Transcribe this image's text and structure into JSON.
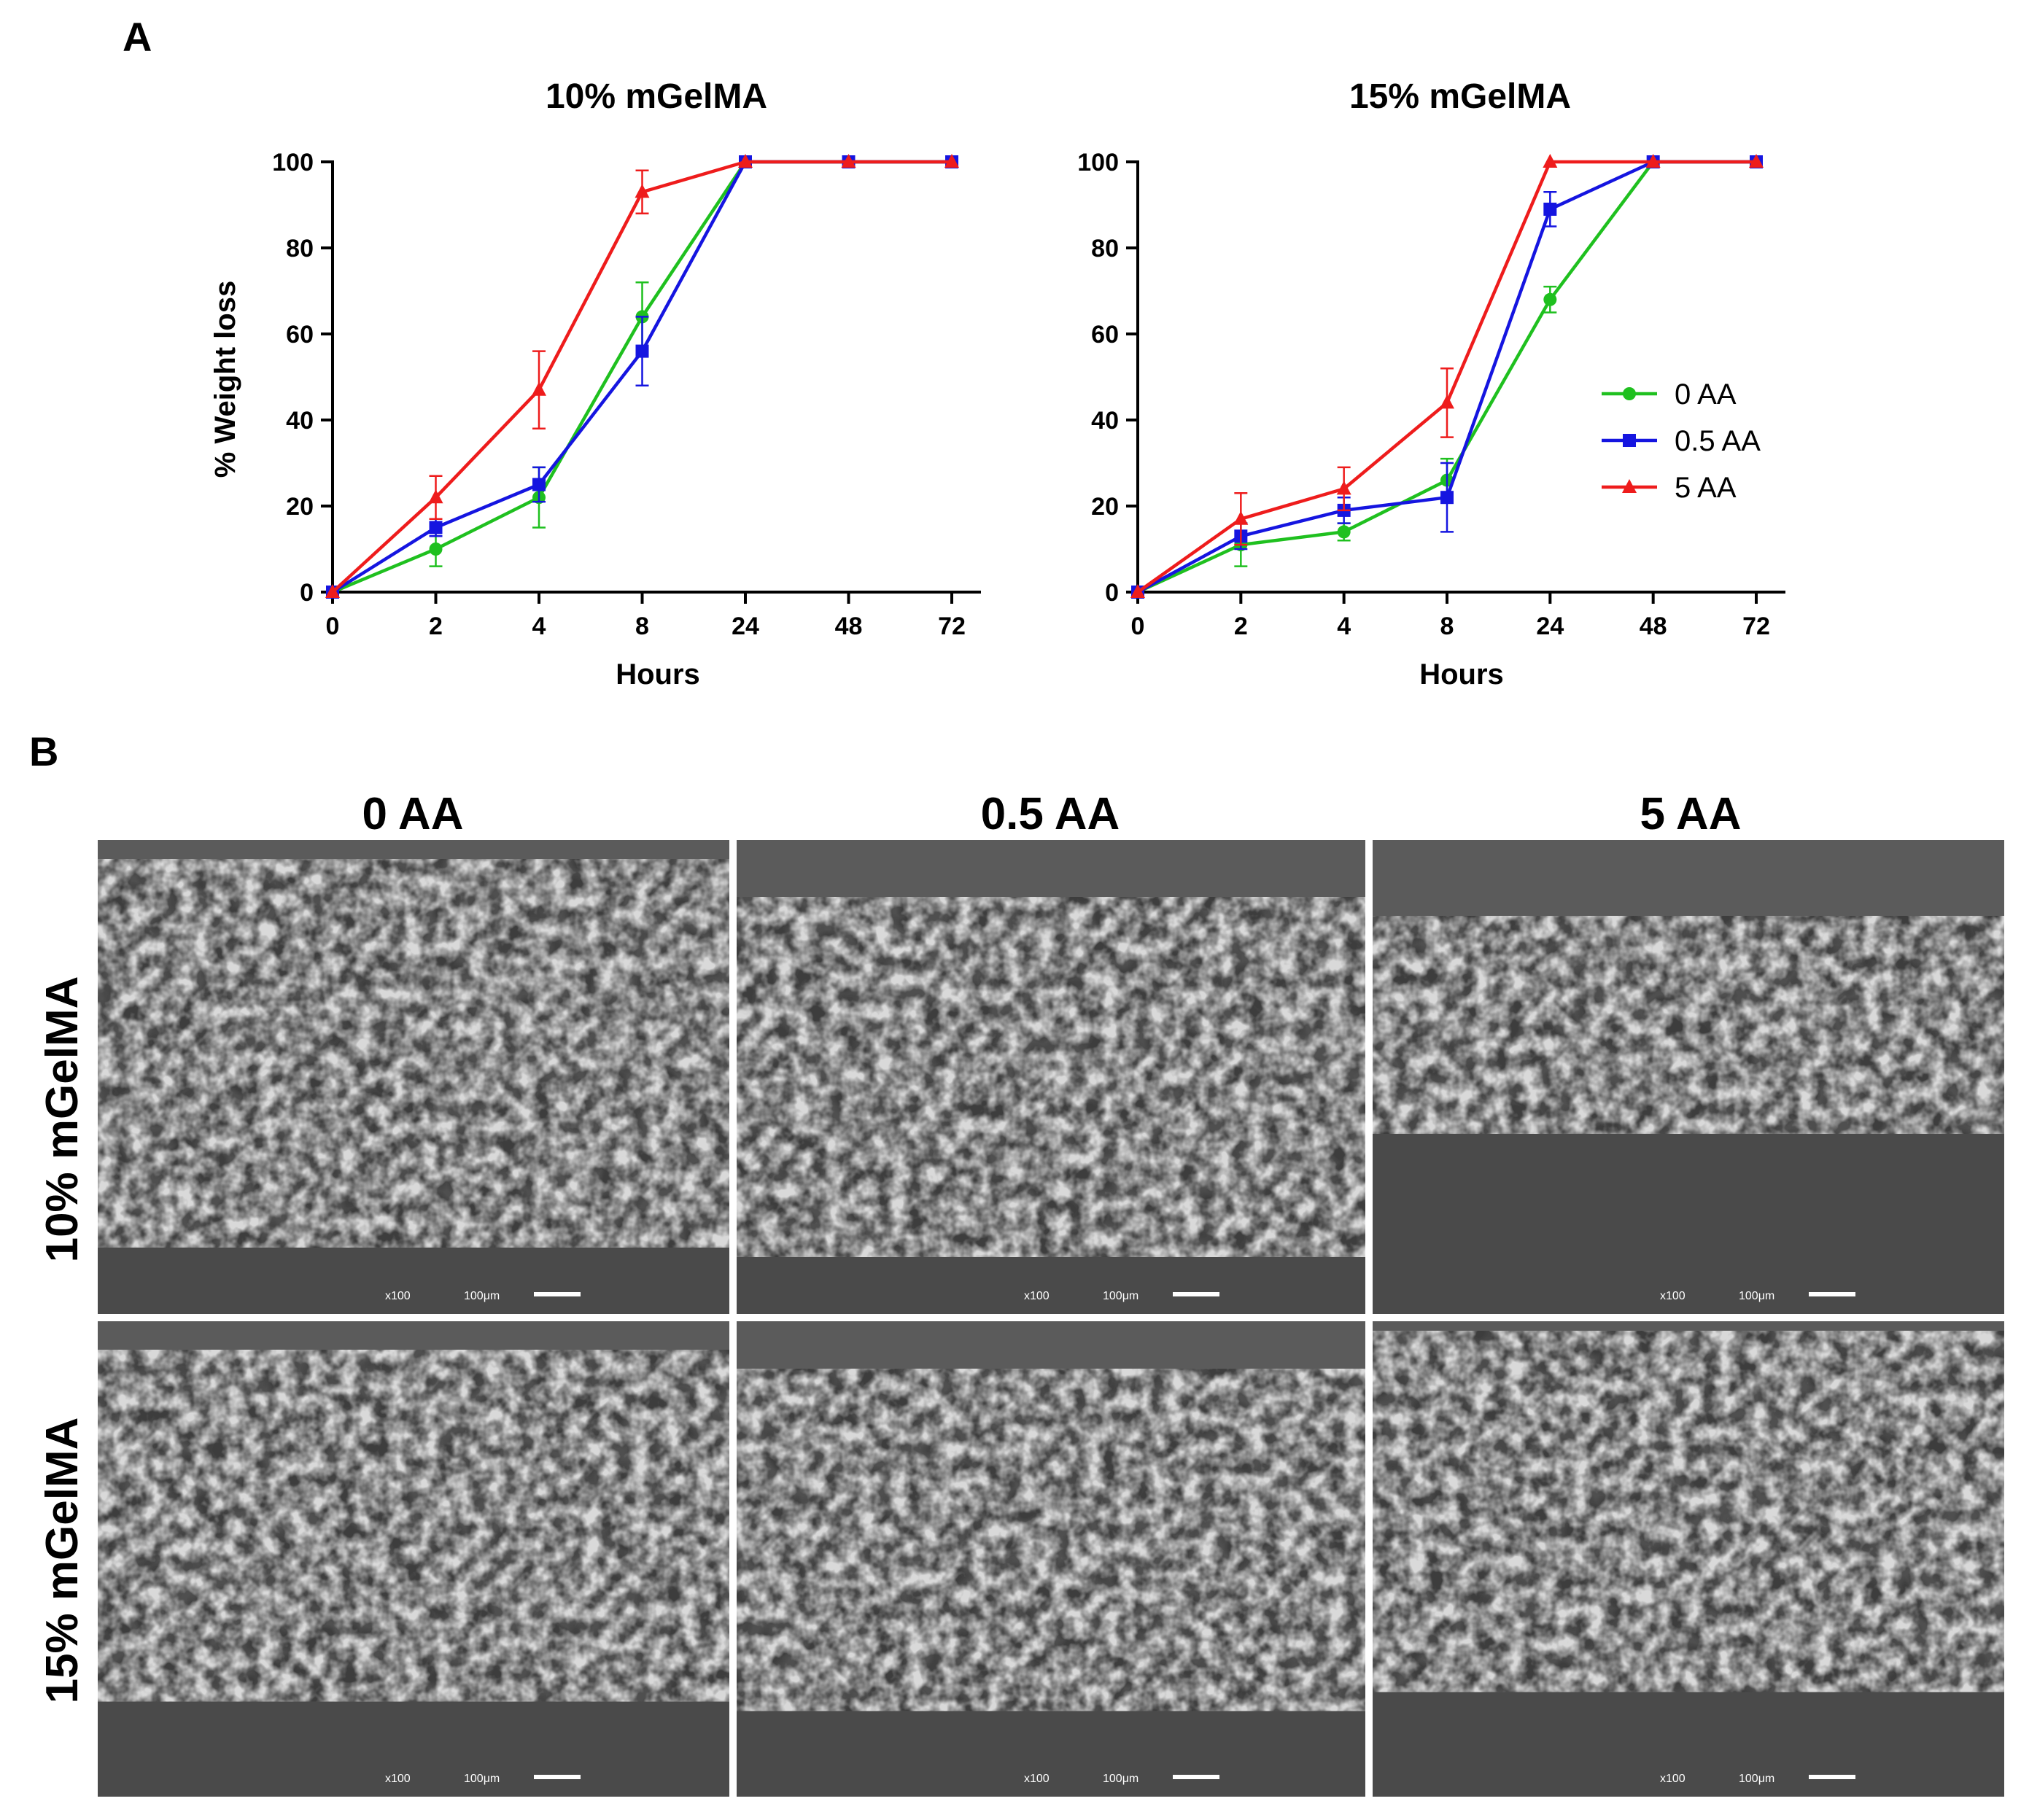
{
  "panel_a": {
    "letter": "A"
  },
  "panel_b": {
    "letter": "B"
  },
  "chart_data": [
    {
      "type": "line",
      "title": "10% mGelMA",
      "xlabel": "Hours",
      "ylabel": "% Weight loss",
      "categories": [
        "0",
        "2",
        "4",
        "8",
        "24",
        "48",
        "72"
      ],
      "ylim": [
        0,
        100
      ],
      "yticks": [
        0,
        20,
        40,
        60,
        80,
        100
      ],
      "grid": false,
      "legend": "none",
      "series": [
        {
          "name": "0 AA",
          "color": "#1fc01f",
          "marker": "circle",
          "values": [
            0,
            10,
            22,
            64,
            100,
            100,
            100
          ],
          "errors": [
            0,
            4,
            7,
            8,
            0,
            0,
            0
          ]
        },
        {
          "name": "0.5 AA",
          "color": "#1515e0",
          "marker": "square",
          "values": [
            0,
            15,
            25,
            56,
            100,
            100,
            100
          ],
          "errors": [
            0,
            2,
            4,
            8,
            0,
            0,
            0
          ]
        },
        {
          "name": "5 AA",
          "color": "#ee1c1c",
          "marker": "triangle",
          "values": [
            0,
            22,
            47,
            93,
            100,
            100,
            100
          ],
          "errors": [
            0,
            5,
            9,
            5,
            0,
            0,
            0
          ]
        }
      ]
    },
    {
      "type": "line",
      "title": "15% mGelMA",
      "xlabel": "Hours",
      "ylabel": "",
      "categories": [
        "0",
        "2",
        "4",
        "8",
        "24",
        "48",
        "72"
      ],
      "ylim": [
        0,
        100
      ],
      "yticks": [
        0,
        20,
        40,
        60,
        80,
        100
      ],
      "grid": false,
      "legend": "right",
      "series": [
        {
          "name": "0 AA",
          "color": "#1fc01f",
          "marker": "circle",
          "values": [
            0,
            11,
            14,
            26,
            68,
            100,
            100
          ],
          "errors": [
            0,
            5,
            2,
            5,
            3,
            0,
            0
          ]
        },
        {
          "name": "0.5 AA",
          "color": "#1515e0",
          "marker": "square",
          "values": [
            0,
            13,
            19,
            22,
            89,
            100,
            100
          ],
          "errors": [
            0,
            3,
            3,
            8,
            4,
            0,
            0
          ]
        },
        {
          "name": "5 AA",
          "color": "#ee1c1c",
          "marker": "triangle",
          "values": [
            0,
            17,
            24,
            44,
            100,
            100,
            100
          ],
          "errors": [
            0,
            6,
            5,
            8,
            0,
            0,
            0
          ]
        }
      ]
    }
  ],
  "sem_grid": {
    "columns": [
      "0 AA",
      "0.5 AA",
      "5 AA"
    ],
    "rows": [
      "10% mGelMA",
      "15% mGelMA"
    ],
    "magnification": "x100",
    "scale_bar": "100μm"
  }
}
